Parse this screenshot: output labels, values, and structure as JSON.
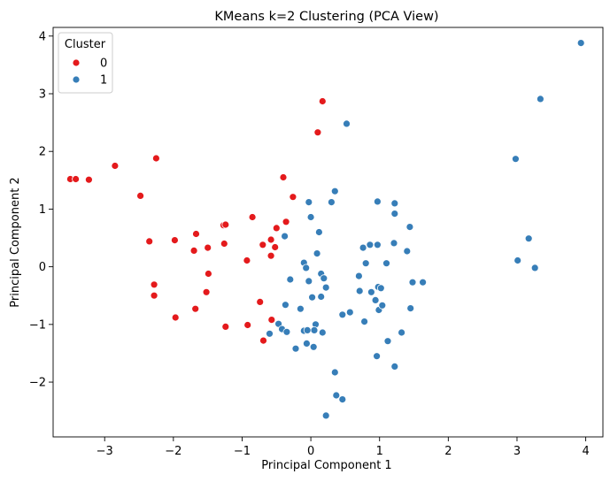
{
  "chart_data": {
    "type": "scatter",
    "title": "KMeans k=2 Clustering (PCA View)",
    "xlabel": "Principal Component 1",
    "ylabel": "Principal Component 2",
    "xlim": [
      -3.75,
      4.25
    ],
    "ylim": [
      -2.95,
      4.15
    ],
    "xticks": [
      -3,
      -2,
      -1,
      0,
      1,
      2,
      3,
      4
    ],
    "yticks": [
      -2,
      -1,
      0,
      1,
      2,
      3,
      4
    ],
    "xtick_labels": [
      "−3",
      "−2",
      "−1",
      "0",
      "1",
      "2",
      "3",
      "4"
    ],
    "ytick_labels": [
      "−2",
      "−1",
      "0",
      "1",
      "2",
      "3",
      "4"
    ],
    "grid": false,
    "legend": {
      "title": "Cluster",
      "placement": "top-left"
    },
    "series": [
      {
        "name": "0",
        "color": "#e41a1c",
        "points": [
          [
            -3.5,
            1.52
          ],
          [
            -3.42,
            1.52
          ],
          [
            -3.23,
            1.51
          ],
          [
            -2.85,
            1.75
          ],
          [
            -2.48,
            1.23
          ],
          [
            -2.25,
            1.88
          ],
          [
            -2.35,
            0.44
          ],
          [
            -2.28,
            -0.31
          ],
          [
            -2.28,
            -0.5
          ],
          [
            -1.98,
            0.46
          ],
          [
            -1.97,
            -0.88
          ],
          [
            -1.7,
            0.28
          ],
          [
            -1.67,
            0.57
          ],
          [
            -1.68,
            -0.73
          ],
          [
            -1.5,
            0.33
          ],
          [
            -1.49,
            -0.12
          ],
          [
            -1.52,
            -0.44
          ],
          [
            -1.27,
            0.72
          ],
          [
            -1.24,
            0.73
          ],
          [
            -1.26,
            0.4
          ],
          [
            -1.24,
            -1.04
          ],
          [
            -0.93,
            0.11
          ],
          [
            -0.92,
            -1.01
          ],
          [
            -0.85,
            0.86
          ],
          [
            -0.7,
            0.38
          ],
          [
            -0.74,
            -0.61
          ],
          [
            -0.69,
            -1.28
          ],
          [
            -0.58,
            0.47
          ],
          [
            -0.58,
            0.19
          ],
          [
            -0.5,
            0.67
          ],
          [
            -0.52,
            0.34
          ],
          [
            -0.57,
            -0.92
          ],
          [
            -0.4,
            1.55
          ],
          [
            -0.36,
            0.78
          ],
          [
            -0.26,
            1.21
          ],
          [
            0.1,
            2.33
          ],
          [
            0.17,
            2.87
          ]
        ]
      },
      {
        "name": "1",
        "color": "#377eb8",
        "points": [
          [
            0.52,
            2.48
          ],
          [
            0.35,
            1.31
          ],
          [
            -0.03,
            1.12
          ],
          [
            0.0,
            0.86
          ],
          [
            0.12,
            0.6
          ],
          [
            0.09,
            0.23
          ],
          [
            -0.38,
            0.53
          ],
          [
            -0.1,
            0.07
          ],
          [
            -0.07,
            -0.02
          ],
          [
            -0.3,
            -0.22
          ],
          [
            -0.03,
            -0.25
          ],
          [
            0.15,
            -0.12
          ],
          [
            0.19,
            -0.2
          ],
          [
            0.22,
            -0.36
          ],
          [
            0.02,
            -0.53
          ],
          [
            0.15,
            -0.52
          ],
          [
            -0.37,
            -0.66
          ],
          [
            -0.15,
            -0.73
          ],
          [
            0.3,
            1.12
          ],
          [
            0.76,
            0.33
          ],
          [
            0.86,
            0.38
          ],
          [
            0.97,
            0.38
          ],
          [
            0.8,
            0.06
          ],
          [
            0.88,
            -0.44
          ],
          [
            0.94,
            -0.58
          ],
          [
            0.71,
            -0.42
          ],
          [
            0.98,
            -0.35
          ],
          [
            1.02,
            -0.37
          ],
          [
            1.1,
            0.06
          ],
          [
            1.21,
            0.41
          ],
          [
            1.22,
            0.92
          ],
          [
            1.22,
            1.1
          ],
          [
            1.4,
            0.27
          ],
          [
            1.44,
            0.69
          ],
          [
            1.48,
            -0.27
          ],
          [
            1.63,
            -0.27
          ],
          [
            0.7,
            -0.16
          ],
          [
            0.57,
            -0.79
          ],
          [
            0.46,
            -0.83
          ],
          [
            0.99,
            -0.75
          ],
          [
            1.04,
            -0.67
          ],
          [
            1.45,
            -0.72
          ],
          [
            0.78,
            -0.95
          ],
          [
            1.32,
            -1.14
          ],
          [
            1.12,
            -1.29
          ],
          [
            0.07,
            -1.0
          ],
          [
            0.05,
            -1.1
          ],
          [
            0.17,
            -1.14
          ],
          [
            -0.1,
            -1.11
          ],
          [
            -0.05,
            -1.1
          ],
          [
            -0.47,
            -0.99
          ],
          [
            -0.42,
            -1.08
          ],
          [
            -0.35,
            -1.13
          ],
          [
            -0.6,
            -1.16
          ],
          [
            -0.06,
            -1.33
          ],
          [
            0.04,
            -1.39
          ],
          [
            -0.22,
            -1.42
          ],
          [
            0.96,
            -1.55
          ],
          [
            1.22,
            -1.73
          ],
          [
            0.35,
            -1.83
          ],
          [
            0.37,
            -2.23
          ],
          [
            0.46,
            -2.3
          ],
          [
            0.22,
            -2.58
          ],
          [
            0.97,
            1.13
          ],
          [
            2.98,
            1.87
          ],
          [
            3.01,
            0.11
          ],
          [
            3.17,
            0.49
          ],
          [
            3.26,
            -0.02
          ],
          [
            3.34,
            2.91
          ],
          [
            3.93,
            3.88
          ]
        ]
      }
    ]
  }
}
